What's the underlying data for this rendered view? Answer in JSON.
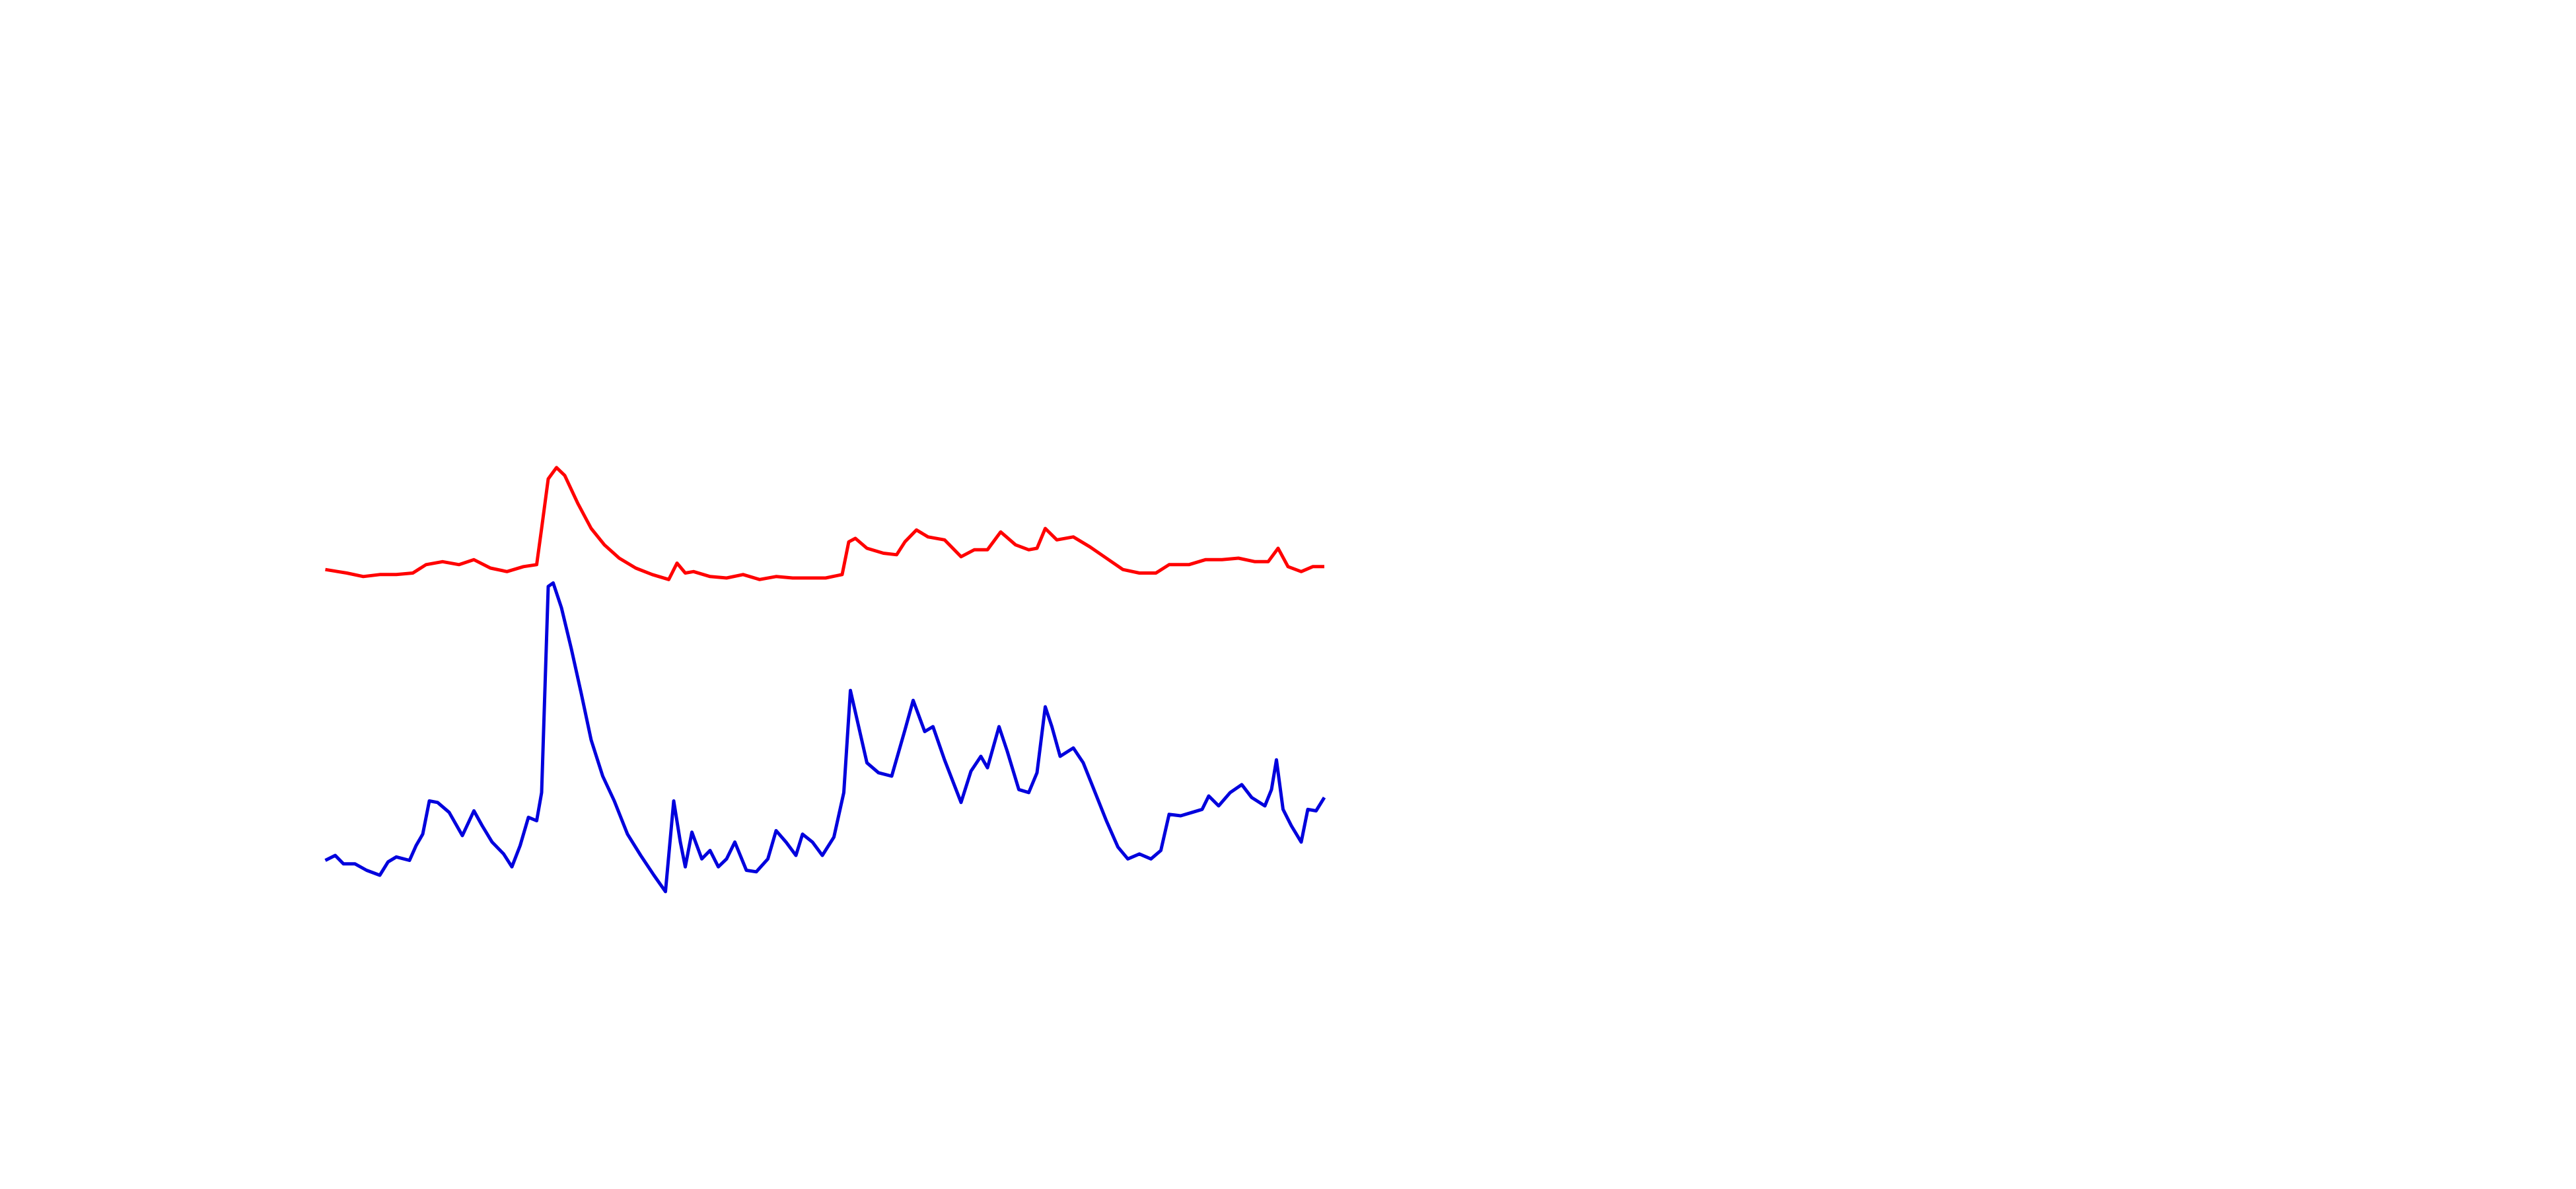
{
  "chart_data": {
    "type": "line",
    "xlim": [
      0,
      605
    ],
    "ylim": [
      0,
      100
    ],
    "grid": false,
    "series": [
      {
        "color": "#ff0000",
        "x": [
          0,
          13,
          23,
          33,
          43,
          53,
          61,
          71,
          81,
          90,
          100,
          110,
          120,
          128,
          131,
          135,
          140,
          145,
          153,
          161,
          169,
          178,
          188,
          198,
          208,
          213,
          218,
          223,
          233,
          243,
          253,
          263,
          273,
          283,
          293,
          303,
          313,
          317,
          321,
          328,
          338,
          346,
          351,
          358,
          365,
          375,
          385,
          393,
          401,
          409,
          418,
          426,
          431,
          436,
          443,
          453,
          463,
          473,
          483,
          493,
          503,
          511,
          523,
          533,
          543,
          553,
          563,
          571,
          577,
          583,
          591,
          598,
          605
        ],
        "values": [
          71.7,
          71,
          70.3,
          70.7,
          70.7,
          71,
          72.7,
          73.3,
          72.7,
          73.7,
          72,
          71.3,
          72.3,
          72.7,
          80,
          90,
          92.3,
          90.7,
          85,
          80,
          76.7,
          74,
          72,
          70.7,
          69.7,
          73,
          71,
          71.3,
          70.3,
          70,
          70.7,
          69.7,
          70.3,
          70,
          70,
          70,
          70.7,
          77.3,
          78,
          76,
          75,
          74.7,
          77.3,
          79.7,
          78.3,
          77.7,
          74.3,
          75.7,
          75.7,
          79.3,
          76.7,
          75.7,
          76,
          80,
          77.7,
          78.3,
          76.3,
          74,
          71.7,
          71,
          71,
          72.7,
          72.7,
          73.7,
          73.7,
          74,
          73.3,
          73.3,
          76,
          72.3,
          71.3,
          72.3,
          72.3
        ]
      },
      {
        "color": "#0000dd",
        "x": [
          0,
          6,
          11,
          18,
          25,
          33,
          38,
          43,
          51,
          55,
          59,
          63,
          68,
          75,
          83,
          90,
          95,
          101,
          108,
          113,
          118,
          123,
          128,
          131,
          135,
          138,
          143,
          149,
          155,
          161,
          168,
          175,
          183,
          191,
          199,
          206,
          211,
          215,
          218,
          222,
          228,
          233,
          238,
          243,
          248,
          255,
          261,
          268,
          273,
          279,
          285,
          289,
          295,
          301,
          308,
          314,
          318,
          323,
          328,
          335,
          343,
          351,
          356,
          363,
          368,
          375,
          385,
          391,
          397,
          401,
          408,
          413,
          420,
          426,
          431,
          436,
          440,
          445,
          453,
          459,
          465,
          473,
          480,
          486,
          493,
          500,
          506,
          511,
          518,
          525,
          531,
          535,
          541,
          548,
          555,
          561,
          569,
          573,
          576,
          580,
          585,
          591,
          595,
          600,
          605
        ],
        "values": [
          13,
          14,
          12.3,
          12.3,
          11,
          10,
          12.7,
          13.7,
          13,
          16,
          18.3,
          25,
          24.7,
          22.7,
          18,
          23,
          20,
          16.7,
          14.3,
          11.7,
          16,
          21.7,
          21,
          26.7,
          68.3,
          69,
          64,
          55.7,
          46.7,
          37.3,
          30,
          25,
          18.3,
          14,
          10,
          6.7,
          25,
          16.7,
          11.7,
          18.7,
          13.3,
          15,
          11.7,
          13.3,
          16.7,
          11,
          10.7,
          13.3,
          19,
          16.7,
          14,
          18.3,
          16.7,
          14,
          17.7,
          26.7,
          47.3,
          40,
          32.7,
          30.7,
          30,
          39.3,
          45.3,
          39,
          40,
          33.3,
          24.7,
          31,
          34,
          31.7,
          40,
          35,
          27.3,
          26.7,
          30.7,
          44,
          40,
          34,
          35.7,
          32.7,
          27.7,
          21,
          15.7,
          13.3,
          14.3,
          13.3,
          15,
          22.3,
          22,
          22.7,
          23.3,
          26,
          24,
          26.7,
          28.3,
          25.7,
          24,
          27.3,
          33.3,
          23.3,
          20,
          16.7,
          23.3,
          23,
          25.7
        ]
      }
    ]
  }
}
